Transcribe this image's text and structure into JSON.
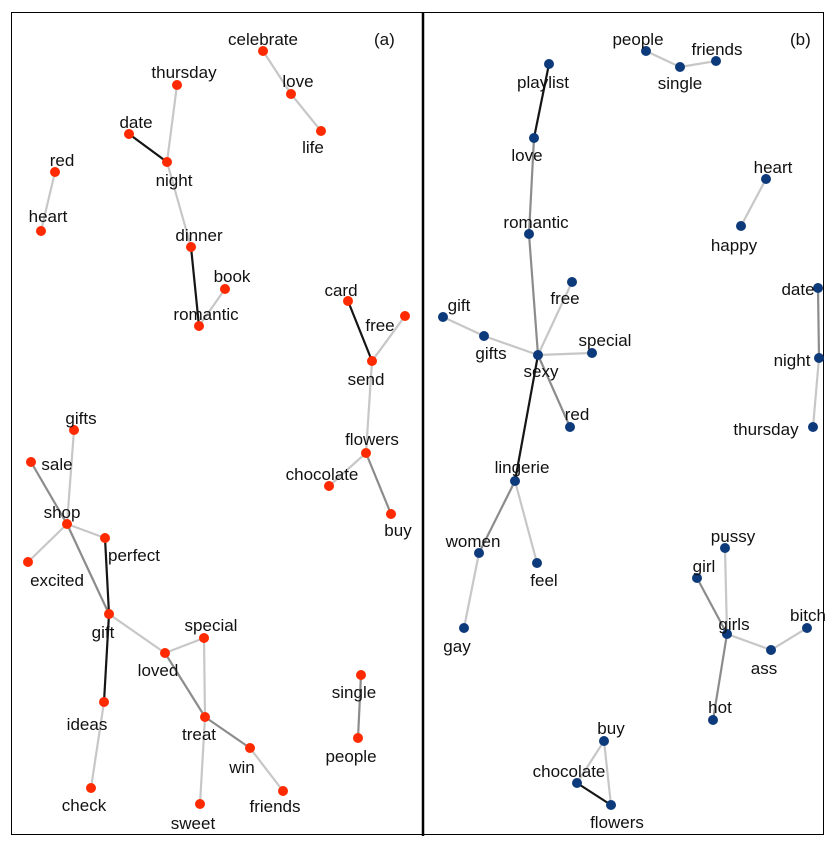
{
  "figure": {
    "panels": [
      {
        "id": "a",
        "label": "(a)",
        "node_color": "#ff2a00",
        "nodes": [
          {
            "id": "celebrate",
            "label": "celebrate"
          },
          {
            "id": "love",
            "label": "love"
          },
          {
            "id": "life",
            "label": "life"
          },
          {
            "id": "thursday",
            "label": "thursday"
          },
          {
            "id": "date",
            "label": "date"
          },
          {
            "id": "night",
            "label": "night"
          },
          {
            "id": "red",
            "label": "red"
          },
          {
            "id": "heart",
            "label": "heart"
          },
          {
            "id": "dinner",
            "label": "dinner"
          },
          {
            "id": "book",
            "label": "book"
          },
          {
            "id": "romantic",
            "label": "romantic"
          },
          {
            "id": "card",
            "label": "card"
          },
          {
            "id": "free",
            "label": "free"
          },
          {
            "id": "send",
            "label": "send"
          },
          {
            "id": "flowers",
            "label": "flowers"
          },
          {
            "id": "chocolate",
            "label": "chocolate"
          },
          {
            "id": "buy",
            "label": "buy"
          },
          {
            "id": "gifts",
            "label": "gifts"
          },
          {
            "id": "sale",
            "label": "sale"
          },
          {
            "id": "shop",
            "label": "shop"
          },
          {
            "id": "perfect",
            "label": "perfect"
          },
          {
            "id": "excited",
            "label": "excited"
          },
          {
            "id": "gift",
            "label": "gift"
          },
          {
            "id": "special",
            "label": "special"
          },
          {
            "id": "loved",
            "label": "loved"
          },
          {
            "id": "ideas",
            "label": "ideas"
          },
          {
            "id": "treat",
            "label": "treat"
          },
          {
            "id": "win",
            "label": "win"
          },
          {
            "id": "check",
            "label": "check"
          },
          {
            "id": "sweet",
            "label": "sweet"
          },
          {
            "id": "friends",
            "label": "friends"
          },
          {
            "id": "single",
            "label": "single"
          },
          {
            "id": "people",
            "label": "people"
          }
        ],
        "edges": [
          {
            "source": "celebrate",
            "target": "love",
            "strength": "weak"
          },
          {
            "source": "love",
            "target": "life",
            "strength": "weak"
          },
          {
            "source": "thursday",
            "target": "night",
            "strength": "weak"
          },
          {
            "source": "date",
            "target": "night",
            "strength": "strong"
          },
          {
            "source": "night",
            "target": "dinner",
            "strength": "weak"
          },
          {
            "source": "red",
            "target": "heart",
            "strength": "weak"
          },
          {
            "source": "dinner",
            "target": "romantic",
            "strength": "strong"
          },
          {
            "source": "book",
            "target": "romantic",
            "strength": "weak"
          },
          {
            "source": "card",
            "target": "send",
            "strength": "strong"
          },
          {
            "source": "free",
            "target": "send",
            "strength": "weak"
          },
          {
            "source": "send",
            "target": "flowers",
            "strength": "weak"
          },
          {
            "source": "flowers",
            "target": "chocolate",
            "strength": "weak"
          },
          {
            "source": "flowers",
            "target": "buy",
            "strength": "medium"
          },
          {
            "source": "gifts",
            "target": "shop",
            "strength": "weak"
          },
          {
            "source": "sale",
            "target": "shop",
            "strength": "medium"
          },
          {
            "source": "shop",
            "target": "excited",
            "strength": "weak"
          },
          {
            "source": "shop",
            "target": "perfect",
            "strength": "weak"
          },
          {
            "source": "shop",
            "target": "gift",
            "strength": "medium"
          },
          {
            "source": "perfect",
            "target": "gift",
            "strength": "strong"
          },
          {
            "source": "gift",
            "target": "loved",
            "strength": "weak"
          },
          {
            "source": "gift",
            "target": "ideas",
            "strength": "strong"
          },
          {
            "source": "ideas",
            "target": "check",
            "strength": "weak"
          },
          {
            "source": "loved",
            "target": "special",
            "strength": "weak"
          },
          {
            "source": "loved",
            "target": "treat",
            "strength": "medium"
          },
          {
            "source": "special",
            "target": "treat",
            "strength": "weak"
          },
          {
            "source": "treat",
            "target": "win",
            "strength": "medium"
          },
          {
            "source": "treat",
            "target": "sweet",
            "strength": "weak"
          },
          {
            "source": "win",
            "target": "friends",
            "strength": "weak"
          },
          {
            "source": "single",
            "target": "people",
            "strength": "medium"
          }
        ]
      },
      {
        "id": "b",
        "label": "(b)",
        "node_color": "#0d3a7a",
        "nodes": [
          {
            "id": "people",
            "label": "people"
          },
          {
            "id": "single",
            "label": "single"
          },
          {
            "id": "friends",
            "label": "friends"
          },
          {
            "id": "playlist",
            "label": "playlist"
          },
          {
            "id": "love",
            "label": "love"
          },
          {
            "id": "heart",
            "label": "heart"
          },
          {
            "id": "happy",
            "label": "happy"
          },
          {
            "id": "romantic",
            "label": "romantic"
          },
          {
            "id": "free",
            "label": "free"
          },
          {
            "id": "gift",
            "label": "gift"
          },
          {
            "id": "gifts",
            "label": "gifts"
          },
          {
            "id": "special",
            "label": "special"
          },
          {
            "id": "sexy",
            "label": "sexy"
          },
          {
            "id": "red",
            "label": "red"
          },
          {
            "id": "date",
            "label": "date"
          },
          {
            "id": "night",
            "label": "night"
          },
          {
            "id": "thursday",
            "label": "thursday"
          },
          {
            "id": "lingerie",
            "label": "lingerie"
          },
          {
            "id": "women",
            "label": "women"
          },
          {
            "id": "feel",
            "label": "feel"
          },
          {
            "id": "gay",
            "label": "gay"
          },
          {
            "id": "pussy",
            "label": "pussy"
          },
          {
            "id": "girl",
            "label": "girl"
          },
          {
            "id": "girls",
            "label": "girls"
          },
          {
            "id": "bitch",
            "label": "bitch"
          },
          {
            "id": "ass",
            "label": "ass"
          },
          {
            "id": "hot",
            "label": "hot"
          },
          {
            "id": "buy",
            "label": "buy"
          },
          {
            "id": "chocolate",
            "label": "chocolate"
          },
          {
            "id": "flowers",
            "label": "flowers"
          }
        ],
        "edges": [
          {
            "source": "people",
            "target": "single",
            "strength": "weak"
          },
          {
            "source": "single",
            "target": "friends",
            "strength": "weak"
          },
          {
            "source": "playlist",
            "target": "love",
            "strength": "strong"
          },
          {
            "source": "love",
            "target": "romantic",
            "strength": "medium"
          },
          {
            "source": "romantic",
            "target": "sexy",
            "strength": "medium"
          },
          {
            "source": "heart",
            "target": "happy",
            "strength": "weak"
          },
          {
            "source": "free",
            "target": "sexy",
            "strength": "weak"
          },
          {
            "source": "gift",
            "target": "gifts",
            "strength": "weak"
          },
          {
            "source": "gifts",
            "target": "sexy",
            "strength": "weak"
          },
          {
            "source": "special",
            "target": "sexy",
            "strength": "weak"
          },
          {
            "source": "sexy",
            "target": "red",
            "strength": "medium"
          },
          {
            "source": "sexy",
            "target": "lingerie",
            "strength": "strong"
          },
          {
            "source": "lingerie",
            "target": "women",
            "strength": "medium"
          },
          {
            "source": "lingerie",
            "target": "feel",
            "strength": "weak"
          },
          {
            "source": "women",
            "target": "gay",
            "strength": "weak"
          },
          {
            "source": "date",
            "target": "night",
            "strength": "medium"
          },
          {
            "source": "night",
            "target": "thursday",
            "strength": "weak"
          },
          {
            "source": "pussy",
            "target": "girls",
            "strength": "weak"
          },
          {
            "source": "girl",
            "target": "girls",
            "strength": "medium"
          },
          {
            "source": "girls",
            "target": "ass",
            "strength": "weak"
          },
          {
            "source": "ass",
            "target": "bitch",
            "strength": "weak"
          },
          {
            "source": "girls",
            "target": "hot",
            "strength": "medium"
          },
          {
            "source": "buy",
            "target": "chocolate",
            "strength": "weak"
          },
          {
            "source": "buy",
            "target": "flowers",
            "strength": "weak"
          },
          {
            "source": "chocolate",
            "target": "flowers",
            "strength": "strong"
          }
        ]
      }
    ]
  }
}
